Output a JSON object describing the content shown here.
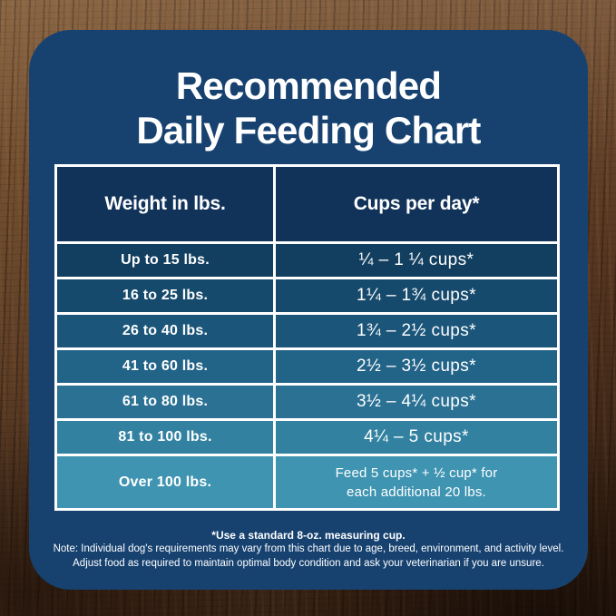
{
  "title": {
    "line1": "Recommended",
    "line2": "Daily Feeding Chart"
  },
  "table": {
    "headers": {
      "weight": "Weight in lbs.",
      "cups": "Cups per day*"
    },
    "rows": [
      {
        "weight": "Up to 15 lbs.",
        "cups": "¼ – 1 ¼ cups*",
        "color": "#123f60"
      },
      {
        "weight": "16 to 25 lbs.",
        "cups": "1¼ – 1¾ cups*",
        "color": "#164a6d"
      },
      {
        "weight": "26 to 40 lbs.",
        "cups": "1¾ – 2½ cups*",
        "color": "#1b567a"
      },
      {
        "weight": "41 to 60 lbs.",
        "cups": "2½ – 3½ cups*",
        "color": "#226388"
      },
      {
        "weight": "61 to 80 lbs.",
        "cups": "3½ – 4¼ cups*",
        "color": "#2a7194"
      },
      {
        "weight": "81 to 100 lbs.",
        "cups": "4¼ – 5 cups*",
        "color": "#3281a0"
      },
      {
        "weight": "Over 100 lbs.",
        "cups": "Feed 5 cups* + ½ cup* for",
        "cups_line2": "each additional 20 lbs.",
        "color": "#3f94b2"
      }
    ]
  },
  "footnotes": {
    "line1": "*Use a standard 8-oz. measuring cup.",
    "line2": "Note: Individual dog's requirements may vary from this chart due to age, breed, environment, and activity level.",
    "line3": "Adjust food as required to maintain optimal body condition and ask your veterinarian if you are unsure."
  },
  "colors": {
    "panel": "#174270",
    "header_cell": "#11335a",
    "divider": "#ffffff",
    "text": "#ffffff"
  },
  "chart_data": {
    "type": "table",
    "title": "Recommended Daily Feeding Chart",
    "columns": [
      "Weight in lbs.",
      "Cups per day*"
    ],
    "rows": [
      [
        "Up to 15 lbs.",
        "¼ – 1 ¼ cups*"
      ],
      [
        "16 to 25 lbs.",
        "1¼ – 1¾ cups*"
      ],
      [
        "26 to 40 lbs.",
        "1¾ – 2½ cups*"
      ],
      [
        "41 to 60 lbs.",
        "2½ – 3½ cups*"
      ],
      [
        "61 to 80 lbs.",
        "3½ – 4¼ cups*"
      ],
      [
        "81 to 100 lbs.",
        "4¼ – 5 cups*"
      ],
      [
        "Over 100 lbs.",
        "Feed 5 cups* + ½ cup* for each additional 20 lbs."
      ]
    ],
    "notes": [
      "*Use a standard 8-oz. measuring cup.",
      "Note: Individual dog's requirements may vary from this chart due to age, breed, environment, and activity level.",
      "Adjust food as required to maintain optimal body condition and ask your veterinarian if you are unsure."
    ]
  }
}
